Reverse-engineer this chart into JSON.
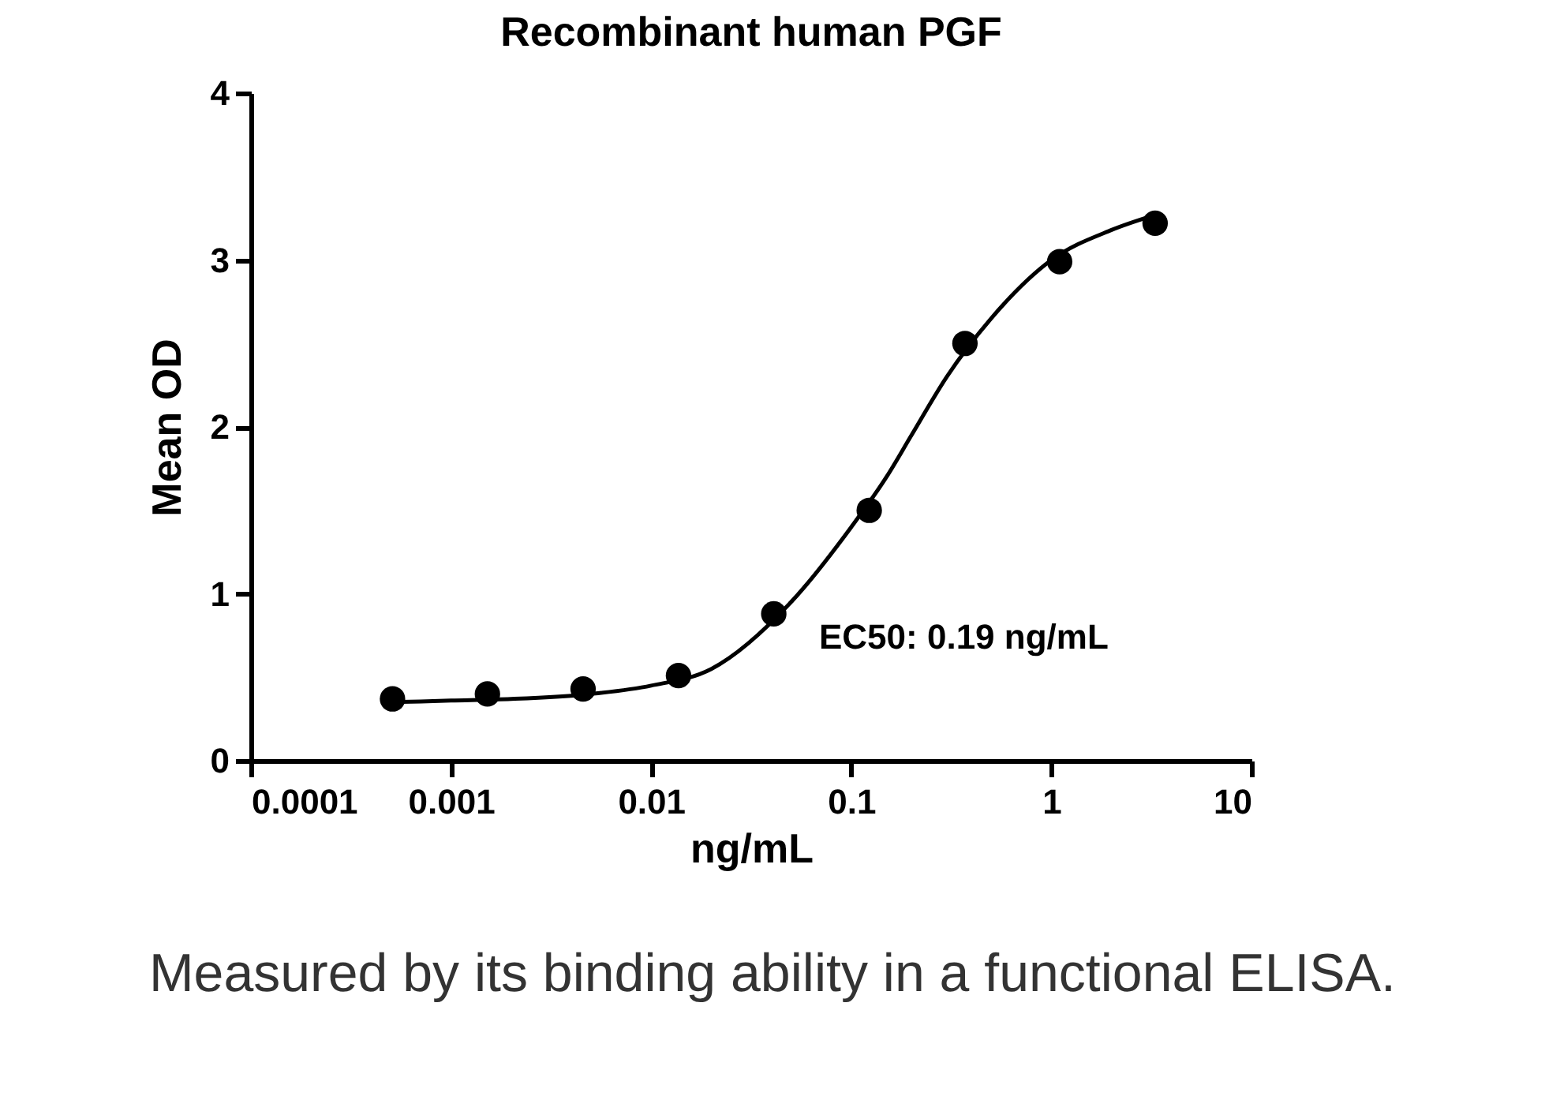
{
  "chart_data": {
    "type": "scatter",
    "title": "Recombinant human PGF",
    "xlabel": "ng/mL",
    "ylabel": "Mean OD",
    "annotations": [
      "EC50: 0.19 ng/mL",
      "Measured by its binding ability in a functional ELISA."
    ],
    "log": "x",
    "xlim": [
      0.0001,
      10
    ],
    "xticks": [
      0.0001,
      0.001,
      0.01,
      0.1,
      1,
      10
    ],
    "ylim": [
      0,
      4
    ],
    "yticks": [
      0,
      1,
      2,
      3,
      4
    ],
    "grid": false,
    "marker": "circle",
    "series": [
      {
        "type": "line",
        "marker": "none",
        "color": "#000000",
        "x": [
          0.0005,
          0.001,
          0.002,
          0.005,
          0.01,
          0.02,
          0.05,
          0.1,
          0.15,
          0.2,
          0.3,
          0.5,
          1,
          2,
          3.3
        ],
        "values": [
          0.35,
          0.36,
          0.37,
          0.4,
          0.45,
          0.55,
          0.95,
          1.4,
          1.7,
          1.95,
          2.3,
          2.65,
          3.0,
          3.18,
          3.27
        ]
      },
      {
        "color": "#000000",
        "x": [
          0.00051,
          0.00152,
          0.00457,
          0.0137,
          0.041,
          0.123,
          0.37,
          1.1,
          3.3
        ],
        "values": [
          0.37,
          0.4,
          0.43,
          0.51,
          0.88,
          1.5,
          2.5,
          2.99,
          3.22
        ]
      }
    ]
  }
}
